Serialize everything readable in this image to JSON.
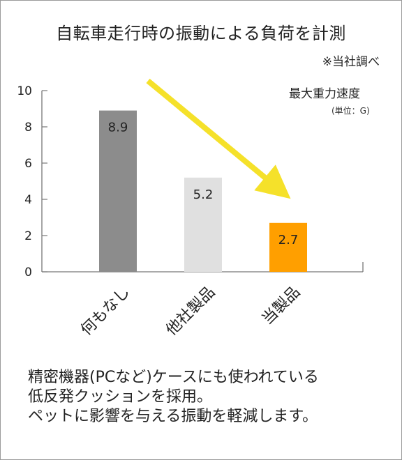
{
  "title": "自転車走行時の振動による負荷を計測",
  "note": "※当社調べ",
  "chart_data": {
    "type": "bar",
    "categories": [
      "何もなし",
      "他社製品",
      "当製品"
    ],
    "values": [
      8.9,
      5.2,
      2.7
    ],
    "value_labels": [
      "8.9",
      "5.2",
      "2.7"
    ],
    "colors": [
      "#8c8c8c",
      "#e0e0e0",
      "#ff9f00"
    ],
    "ylabel": "最大重力速度",
    "yunit": "(単位：G)",
    "ylim": [
      0,
      10
    ],
    "yticks": [
      "0",
      "2",
      "4",
      "6",
      "8",
      "10"
    ],
    "arrow_color": "#f5e12a"
  },
  "description": [
    "精密機器(PCなど)ケースにも使われている",
    "低反発クッションを採用。",
    "ペットに影響を与える振動を軽減します。"
  ]
}
